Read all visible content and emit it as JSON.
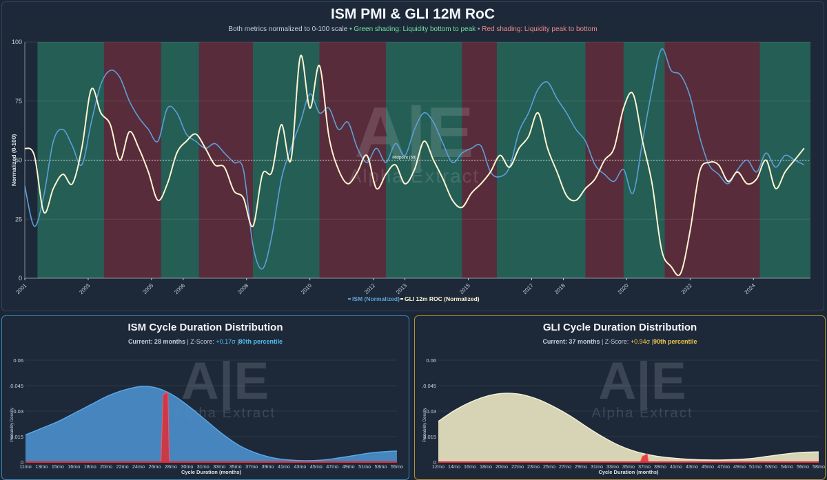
{
  "colors": {
    "ism": "#5d9fd8",
    "gli": "#fdf6d2",
    "green_shade": "#2c8a6e",
    "red_shade": "#8b2f3e",
    "ism_dist_fill": "#4b8fcd",
    "gli_dist_fill": "#ece7c3",
    "marker": "#e02c35",
    "ism_border": "#3b86b8",
    "gli_border": "#b78f3a"
  },
  "watermark": {
    "letters": "A|E",
    "text": "Alpha Extract"
  },
  "main": {
    "title": "ISM PMI & GLI 12M RoC",
    "subtitle_prefix": "Both metrics normalized to 0-100 scale",
    "subtitle_sep": "•",
    "subtitle_green": "Green shading: Liquidity bottom to peak",
    "subtitle_red": "Red shading: Liquidity peak to bottom"
  },
  "ism_panel": {
    "title": "ISM Cycle Duration Distribution",
    "current_label": "Current: 28 months",
    "zscore_label": "| Z-Score:",
    "zscore_value": "+0.17σ",
    "percentile_sep": "|",
    "percentile": "80th percentile"
  },
  "gli_panel": {
    "title": "GLI Cycle Duration Distribution",
    "current_label": "Current: 37 months",
    "zscore_label": "| Z-Score:",
    "zscore_value": "+0.94σ",
    "percentile_sep": "|",
    "percentile": "90th percentile"
  },
  "chart_data": [
    {
      "type": "line",
      "title": "ISM PMI & GLI 12M RoC",
      "xlabel": "",
      "ylabel": "Normalized (0-100)",
      "xlim": [
        2001,
        2025.8
      ],
      "ylim": [
        0,
        100
      ],
      "yticks": [
        0,
        25,
        50,
        75,
        100
      ],
      "xticks": [
        "2001",
        "2003",
        "2005",
        "2006",
        "2008",
        "2010",
        "2012",
        "2013",
        "2015",
        "2017",
        "2018",
        "2020",
        "2022",
        "2024"
      ],
      "xtick_positions": [
        2001,
        2003,
        2005,
        2006,
        2008,
        2010,
        2012,
        2013,
        2015,
        2017,
        2018,
        2020,
        2022,
        2024
      ],
      "midline": {
        "y": 50,
        "label": "Midpoint (50)"
      },
      "legend_position": "bottom",
      "grid": true,
      "shading": [
        {
          "from": 2001.4,
          "to": 2003.5,
          "color": "green"
        },
        {
          "from": 2003.5,
          "to": 2005.3,
          "color": "red"
        },
        {
          "from": 2005.3,
          "to": 2006.5,
          "color": "green"
        },
        {
          "from": 2006.5,
          "to": 2008.2,
          "color": "red"
        },
        {
          "from": 2008.2,
          "to": 2010.3,
          "color": "green"
        },
        {
          "from": 2010.3,
          "to": 2012.4,
          "color": "red"
        },
        {
          "from": 2012.4,
          "to": 2014.8,
          "color": "green"
        },
        {
          "from": 2014.8,
          "to": 2015.9,
          "color": "red"
        },
        {
          "from": 2015.9,
          "to": 2018.7,
          "color": "green"
        },
        {
          "from": 2018.7,
          "to": 2019.9,
          "color": "red"
        },
        {
          "from": 2019.9,
          "to": 2021.2,
          "color": "green"
        },
        {
          "from": 2021.2,
          "to": 2024.2,
          "color": "red"
        },
        {
          "from": 2024.2,
          "to": 2025.8,
          "color": "green"
        }
      ],
      "series": [
        {
          "name": "ISM (Normalized)",
          "x": [
            2001,
            2001.3,
            2001.6,
            2001.9,
            2002.2,
            2002.5,
            2002.8,
            2003.1,
            2003.4,
            2003.7,
            2004,
            2004.3,
            2004.6,
            2004.9,
            2005.2,
            2005.5,
            2005.8,
            2006.1,
            2006.4,
            2006.7,
            2007,
            2007.3,
            2007.6,
            2007.9,
            2008.2,
            2008.5,
            2008.8,
            2009.1,
            2009.4,
            2009.7,
            2010,
            2010.3,
            2010.6,
            2010.9,
            2011.2,
            2011.5,
            2011.8,
            2012.1,
            2012.4,
            2012.7,
            2013,
            2013.3,
            2013.6,
            2013.9,
            2014.2,
            2014.5,
            2014.8,
            2015.1,
            2015.4,
            2015.7,
            2016,
            2016.3,
            2016.6,
            2016.9,
            2017.2,
            2017.5,
            2017.8,
            2018.1,
            2018.4,
            2018.7,
            2019,
            2019.3,
            2019.6,
            2019.9,
            2020.2,
            2020.5,
            2020.8,
            2021.1,
            2021.4,
            2021.7,
            2022,
            2022.3,
            2022.6,
            2022.9,
            2023.2,
            2023.5,
            2023.8,
            2024.1,
            2024.4,
            2024.7,
            2025,
            2025.3,
            2025.6
          ],
          "values": [
            39,
            22,
            35,
            58,
            63,
            56,
            48,
            66,
            82,
            88,
            85,
            75,
            68,
            63,
            58,
            72,
            70,
            61,
            58,
            55,
            57,
            53,
            49,
            46,
            14,
            4,
            18,
            42,
            55,
            66,
            78,
            70,
            72,
            63,
            66,
            55,
            49,
            55,
            49,
            57,
            52,
            63,
            70,
            66,
            57,
            49,
            53,
            55,
            56,
            45,
            43,
            47,
            62,
            70,
            80,
            83,
            76,
            70,
            63,
            58,
            48,
            44,
            41,
            46,
            36,
            58,
            80,
            97,
            88,
            86,
            77,
            60,
            48,
            44,
            40,
            46,
            50,
            45,
            53,
            47,
            52,
            50,
            48
          ],
          "color": "#5d9fd8"
        },
        {
          "name": "GLI 12m ROC (Normalized)",
          "x": [
            2001,
            2001.3,
            2001.6,
            2001.9,
            2002.2,
            2002.5,
            2002.8,
            2003.1,
            2003.4,
            2003.7,
            2004,
            2004.3,
            2004.6,
            2004.9,
            2005.2,
            2005.5,
            2005.8,
            2006.1,
            2006.4,
            2006.7,
            2007,
            2007.3,
            2007.6,
            2007.9,
            2008.2,
            2008.5,
            2008.8,
            2009.1,
            2009.4,
            2009.7,
            2010,
            2010.3,
            2010.6,
            2010.9,
            2011.2,
            2011.5,
            2011.8,
            2012.1,
            2012.4,
            2012.7,
            2013,
            2013.3,
            2013.6,
            2013.9,
            2014.2,
            2014.5,
            2014.8,
            2015.1,
            2015.4,
            2015.7,
            2016,
            2016.3,
            2016.6,
            2016.9,
            2017.2,
            2017.5,
            2017.8,
            2018.1,
            2018.4,
            2018.7,
            2019,
            2019.3,
            2019.6,
            2019.9,
            2020.2,
            2020.5,
            2020.8,
            2021.1,
            2021.4,
            2021.7,
            2022,
            2022.3,
            2022.6,
            2022.9,
            2023.2,
            2023.5,
            2023.8,
            2024.1,
            2024.4,
            2024.7,
            2025,
            2025.3,
            2025.6
          ],
          "values": [
            55,
            52,
            28,
            38,
            44,
            40,
            55,
            80,
            70,
            65,
            50,
            62,
            55,
            45,
            33,
            40,
            53,
            58,
            61,
            55,
            48,
            47,
            37,
            34,
            22,
            44,
            45,
            65,
            50,
            94,
            72,
            90,
            60,
            46,
            40,
            45,
            52,
            38,
            44,
            48,
            40,
            46,
            58,
            50,
            42,
            33,
            30,
            36,
            40,
            45,
            52,
            47,
            55,
            60,
            70,
            55,
            45,
            35,
            33,
            38,
            42,
            50,
            55,
            72,
            78,
            58,
            40,
            12,
            5,
            2,
            20,
            45,
            49,
            48,
            41,
            45,
            40,
            42,
            50,
            38,
            45,
            50,
            55
          ],
          "color": "#fdf6d2"
        }
      ]
    },
    {
      "type": "area",
      "title": "ISM Cycle Duration Distribution",
      "xlabel": "Cycle Duration (months)",
      "ylabel": "Probability Density",
      "ylim": [
        0,
        0.06
      ],
      "yticks": [
        0,
        0.015,
        0.03,
        0.045,
        0.06
      ],
      "ytick_labels": [
        "0",
        "0.015",
        "0.03",
        ".0.045",
        "0.06"
      ],
      "x": [
        11,
        13,
        15,
        17,
        19,
        21,
        23,
        25,
        27,
        29,
        31,
        33,
        35,
        37,
        39,
        41,
        43,
        45,
        47,
        49,
        51,
        53,
        55,
        56
      ],
      "values": [
        0.016,
        0.02,
        0.024,
        0.029,
        0.034,
        0.039,
        0.0425,
        0.0445,
        0.0435,
        0.039,
        0.032,
        0.024,
        0.016,
        0.0095,
        0.0052,
        0.0025,
        0.0012,
        0.0008,
        0.0012,
        0.0025,
        0.004,
        0.0055,
        0.0063,
        0.0065
      ],
      "xticks": [
        "11mo",
        "13mo",
        "15mo",
        "16mo",
        "18mo",
        "20mo",
        "22mo",
        "24mo",
        "26mo",
        "28mo",
        "30mo",
        "31mo",
        "33mo",
        "35mo",
        "37mo",
        "39mo",
        "41mo",
        "43mo",
        "45mo",
        "47mo",
        "49mo",
        "51mo",
        "53mo",
        "55mo"
      ],
      "current_marker": {
        "x": 28,
        "label": "28"
      }
    },
    {
      "type": "area",
      "title": "GLI Cycle Duration Distribution",
      "xlabel": "Cycle Duration (months)",
      "ylabel": "Probability Density",
      "ylim": [
        0,
        0.06
      ],
      "yticks": [
        0,
        0.015,
        0.03,
        0.045,
        0.06
      ],
      "ytick_labels": [
        "0",
        "0.015",
        "0.03",
        ".0.045",
        "0.06"
      ],
      "x": [
        12,
        14,
        16,
        18,
        20,
        22,
        24,
        26,
        28,
        30,
        32,
        34,
        36,
        38,
        40,
        42,
        44,
        46,
        48,
        50,
        52,
        54,
        56,
        58
      ],
      "values": [
        0.024,
        0.0305,
        0.0355,
        0.039,
        0.0405,
        0.0398,
        0.037,
        0.0325,
        0.027,
        0.0205,
        0.0145,
        0.0095,
        0.006,
        0.0038,
        0.0025,
        0.0017,
        0.0013,
        0.0012,
        0.0015,
        0.0022,
        0.0035,
        0.0048,
        0.0057,
        0.006
      ],
      "xticks": [
        "12mo",
        "14mo",
        "16mo",
        "18mo",
        "20mo",
        "22mo",
        "23mo",
        "25mo",
        "27mo",
        "29mo",
        "31mo",
        "33mo",
        "35mo",
        "37mo",
        "39mo",
        "41mo",
        "43mo",
        "45mo",
        "47mo",
        "49mo",
        "51mo",
        "53mo",
        "54mo",
        "56mo",
        "58mo"
      ],
      "current_marker": {
        "x": 37,
        "label": "37"
      }
    }
  ]
}
